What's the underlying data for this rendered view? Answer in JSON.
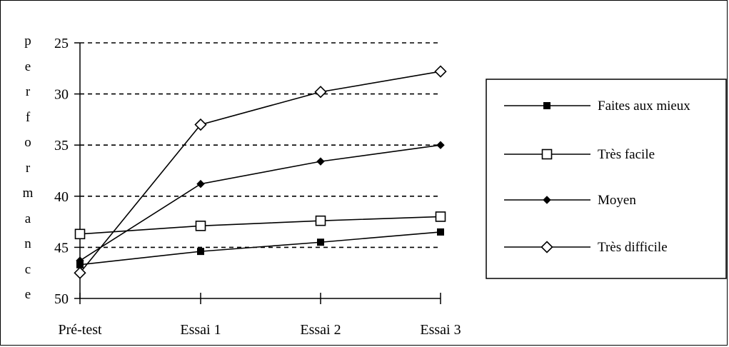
{
  "chart_data": {
    "type": "line",
    "title": "",
    "xlabel": "",
    "ylabel": "performance",
    "categories": [
      "Pré-test",
      "Essai 1",
      "Essai 2",
      "Essai 3"
    ],
    "y_ticks": [
      "25",
      "30",
      "35",
      "40",
      "45",
      "50"
    ],
    "ylim": [
      50,
      25
    ],
    "y_inverted": true,
    "grid": "dashed horizontal",
    "legend_position": "right",
    "series": [
      {
        "name": "Faites aux mieux",
        "marker": "filled-square",
        "values": [
          46.7,
          45.4,
          44.5,
          43.5
        ]
      },
      {
        "name": "Très facile",
        "marker": "open-square",
        "values": [
          43.7,
          42.9,
          42.4,
          42.0
        ]
      },
      {
        "name": "Moyen",
        "marker": "filled-diamond",
        "values": [
          46.3,
          38.8,
          36.6,
          35.0
        ]
      },
      {
        "name": "Très difficile",
        "marker": "open-diamond",
        "values": [
          47.5,
          33.0,
          29.8,
          27.8
        ]
      }
    ]
  }
}
